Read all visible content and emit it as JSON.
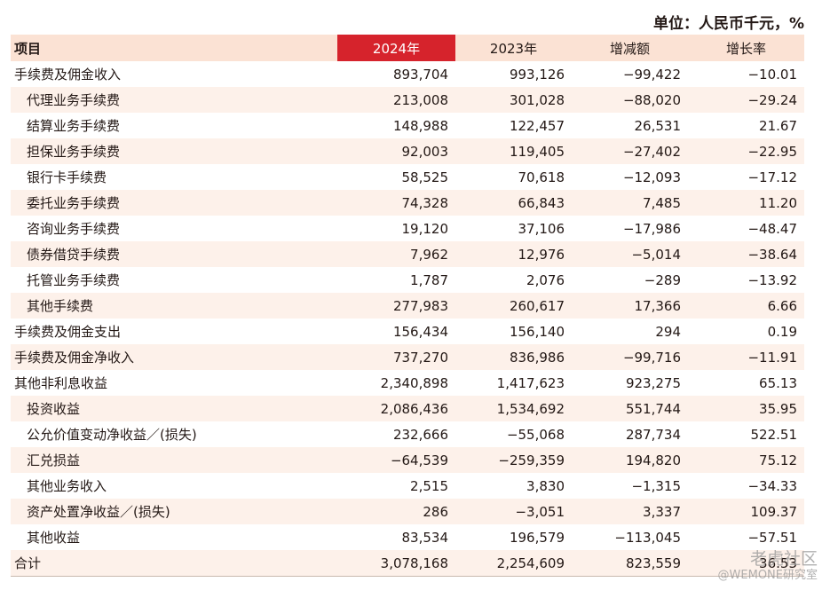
{
  "unit_label": "单位：人民币千元，%",
  "headers": [
    "项目",
    "2024年",
    "2023年",
    "增减额",
    "增长率"
  ],
  "rows": [
    {
      "label": "手续费及佣金收入",
      "indent": false,
      "v2024": "893,704",
      "v2023": "993,126",
      "change": "−99,422",
      "rate": "−10.01"
    },
    {
      "label": "代理业务手续费",
      "indent": true,
      "v2024": "213,008",
      "v2023": "301,028",
      "change": "−88,020",
      "rate": "−29.24"
    },
    {
      "label": "结算业务手续费",
      "indent": true,
      "v2024": "148,988",
      "v2023": "122,457",
      "change": "26,531",
      "rate": "21.67"
    },
    {
      "label": "担保业务手续费",
      "indent": true,
      "v2024": "92,003",
      "v2023": "119,405",
      "change": "−27,402",
      "rate": "−22.95"
    },
    {
      "label": "银行卡手续费",
      "indent": true,
      "v2024": "58,525",
      "v2023": "70,618",
      "change": "−12,093",
      "rate": "−17.12"
    },
    {
      "label": "委托业务手续费",
      "indent": true,
      "v2024": "74,328",
      "v2023": "66,843",
      "change": "7,485",
      "rate": "11.20"
    },
    {
      "label": "咨询业务手续费",
      "indent": true,
      "v2024": "19,120",
      "v2023": "37,106",
      "change": "−17,986",
      "rate": "−48.47"
    },
    {
      "label": "债券借贷手续费",
      "indent": true,
      "v2024": "7,962",
      "v2023": "12,976",
      "change": "−5,014",
      "rate": "−38.64"
    },
    {
      "label": "托管业务手续费",
      "indent": true,
      "v2024": "1,787",
      "v2023": "2,076",
      "change": "−289",
      "rate": "−13.92"
    },
    {
      "label": "其他手续费",
      "indent": true,
      "v2024": "277,983",
      "v2023": "260,617",
      "change": "17,366",
      "rate": "6.66"
    },
    {
      "label": "手续费及佣金支出",
      "indent": false,
      "v2024": "156,434",
      "v2023": "156,140",
      "change": "294",
      "rate": "0.19"
    },
    {
      "label": "手续费及佣金净收入",
      "indent": false,
      "v2024": "737,270",
      "v2023": "836,986",
      "change": "−99,716",
      "rate": "−11.91"
    },
    {
      "label": "其他非利息收益",
      "indent": false,
      "v2024": "2,340,898",
      "v2023": "1,417,623",
      "change": "923,275",
      "rate": "65.13"
    },
    {
      "label": "投资收益",
      "indent": true,
      "v2024": "2,086,436",
      "v2023": "1,534,692",
      "change": "551,744",
      "rate": "35.95"
    },
    {
      "label": "公允价值变动净收益／(损失)",
      "indent": true,
      "v2024": "232,666",
      "v2023": "−55,068",
      "change": "287,734",
      "rate": "522.51"
    },
    {
      "label": "汇兑损益",
      "indent": true,
      "v2024": "−64,539",
      "v2023": "−259,359",
      "change": "194,820",
      "rate": "75.12"
    },
    {
      "label": "其他业务收入",
      "indent": true,
      "v2024": "2,515",
      "v2023": "3,830",
      "change": "−1,315",
      "rate": "−34.33"
    },
    {
      "label": "资产处置净收益／(损失)",
      "indent": true,
      "v2024": "286",
      "v2023": "−3,051",
      "change": "3,337",
      "rate": "109.37"
    },
    {
      "label": "其他收益",
      "indent": true,
      "v2024": "83,534",
      "v2023": "196,579",
      "change": "−113,045",
      "rate": "−57.51"
    },
    {
      "label": "合计",
      "indent": false,
      "v2024": "3,078,168",
      "v2023": "2,254,609",
      "change": "823,559",
      "rate": "36.53"
    }
  ],
  "watermark": {
    "line1": "老虎社区",
    "line2": "@WEMONE研究室"
  },
  "colors": {
    "header_bg": "#fbe2d4",
    "highlight": "#d6232c",
    "row_shade": "#fdf1ea",
    "text": "#231815"
  }
}
